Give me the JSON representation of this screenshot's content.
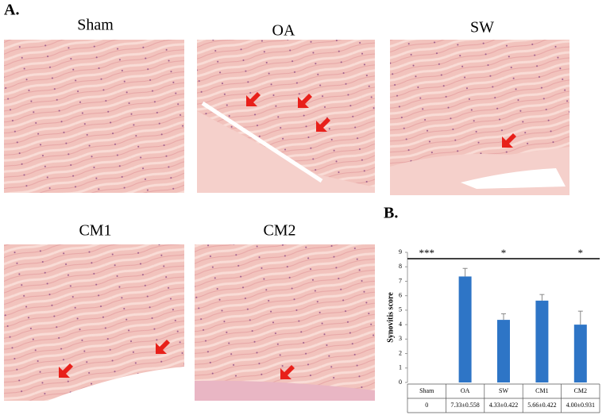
{
  "panel_a_label": "A.",
  "panel_b_label": "B.",
  "panels": [
    {
      "label": "Sham"
    },
    {
      "label": "OA"
    },
    {
      "label": "SW"
    },
    {
      "label": "CM1"
    },
    {
      "label": "CM2"
    }
  ],
  "chart_data": {
    "type": "bar",
    "y_label": "Synovitis score",
    "categories": [
      "Sham",
      "OA",
      "SW",
      "CM1",
      "CM2"
    ],
    "values": [
      0,
      7.33,
      4.33,
      5.66,
      4.0
    ],
    "errors": [
      null,
      0.558,
      0.422,
      0.422,
      0.931
    ],
    "value_labels": [
      "0",
      "7.33±0.558",
      "4.33±0.422",
      "5.66±0.422",
      "4.00±0.931"
    ],
    "significance": [
      "***",
      null,
      "*",
      null,
      "*"
    ],
    "color": "#2e75c6",
    "ylim": [
      0,
      9
    ],
    "yticks": [
      0,
      1,
      2,
      3,
      4,
      5,
      6,
      7,
      8,
      9
    ]
  }
}
